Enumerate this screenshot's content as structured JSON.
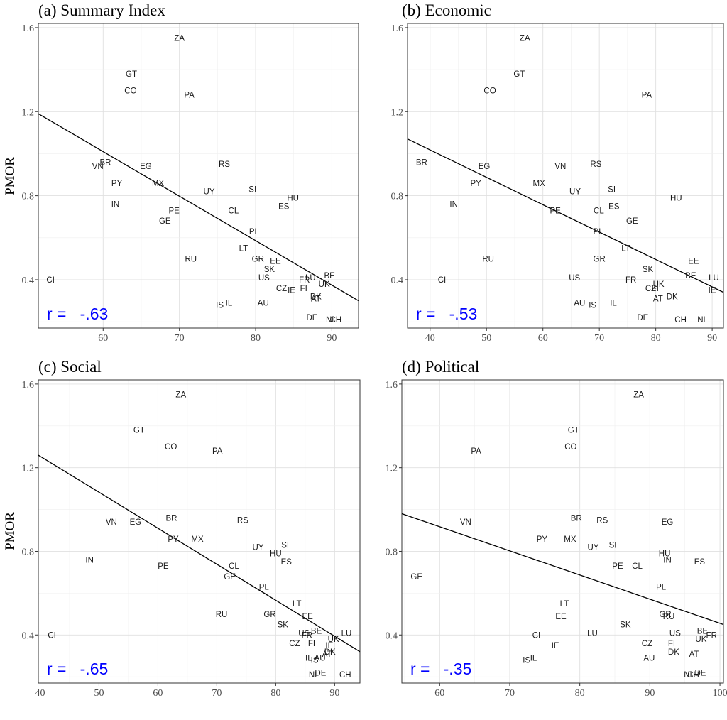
{
  "y_axis_label": "PMOR",
  "chart_data": [
    {
      "type": "scatter",
      "title": "(a) Summary Index",
      "xlim": [
        51.5,
        93.5
      ],
      "ylim": [
        0.17,
        1.62
      ],
      "x_ticks": [
        "60",
        "70",
        "80",
        "90"
      ],
      "y_ticks": [
        "0.4",
        "0.8",
        "1.2",
        "1.6"
      ],
      "fit_line": {
        "x0": 51.5,
        "y0": 1.19,
        "x1": 93.5,
        "y1": 0.3
      },
      "r_label": "r =   -.63",
      "points": [
        {
          "label": "ZA",
          "x": 70.0,
          "y": 1.55
        },
        {
          "label": "GT",
          "x": 63.7,
          "y": 1.38
        },
        {
          "label": "CO",
          "x": 63.6,
          "y": 1.3
        },
        {
          "label": "PA",
          "x": 71.3,
          "y": 1.28
        },
        {
          "label": "BR",
          "x": 60.3,
          "y": 0.96
        },
        {
          "label": "VN",
          "x": 59.3,
          "y": 0.94
        },
        {
          "label": "EG",
          "x": 65.6,
          "y": 0.94
        },
        {
          "label": "RS",
          "x": 75.9,
          "y": 0.95
        },
        {
          "label": "PY",
          "x": 61.8,
          "y": 0.86
        },
        {
          "label": "MX",
          "x": 67.2,
          "y": 0.86
        },
        {
          "label": "UY",
          "x": 73.9,
          "y": 0.82
        },
        {
          "label": "SI",
          "x": 79.6,
          "y": 0.83
        },
        {
          "label": "HU",
          "x": 84.9,
          "y": 0.79
        },
        {
          "label": "IN",
          "x": 61.6,
          "y": 0.76
        },
        {
          "label": "ES",
          "x": 83.7,
          "y": 0.75
        },
        {
          "label": "PE",
          "x": 69.3,
          "y": 0.73
        },
        {
          "label": "CL",
          "x": 77.1,
          "y": 0.73
        },
        {
          "label": "GE",
          "x": 68.1,
          "y": 0.68
        },
        {
          "label": "PL",
          "x": 79.8,
          "y": 0.63
        },
        {
          "label": "LT",
          "x": 78.4,
          "y": 0.55
        },
        {
          "label": "GR",
          "x": 80.3,
          "y": 0.5
        },
        {
          "label": "EE",
          "x": 82.6,
          "y": 0.49
        },
        {
          "label": "RU",
          "x": 71.5,
          "y": 0.5
        },
        {
          "label": "SK",
          "x": 81.8,
          "y": 0.45
        },
        {
          "label": "US",
          "x": 81.1,
          "y": 0.41
        },
        {
          "label": "FR",
          "x": 86.4,
          "y": 0.4
        },
        {
          "label": "LU",
          "x": 87.2,
          "y": 0.41
        },
        {
          "label": "BE",
          "x": 89.7,
          "y": 0.42
        },
        {
          "label": "UK",
          "x": 89.0,
          "y": 0.38
        },
        {
          "label": "CI",
          "x": 53.1,
          "y": 0.4
        },
        {
          "label": "CZ",
          "x": 83.4,
          "y": 0.36
        },
        {
          "label": "IE",
          "x": 84.7,
          "y": 0.35
        },
        {
          "label": "FI",
          "x": 86.3,
          "y": 0.36
        },
        {
          "label": "DK",
          "x": 87.9,
          "y": 0.32
        },
        {
          "label": "AT",
          "x": 87.9,
          "y": 0.31
        },
        {
          "label": "IL",
          "x": 76.5,
          "y": 0.29
        },
        {
          "label": "IS",
          "x": 75.3,
          "y": 0.28
        },
        {
          "label": "AU",
          "x": 81.0,
          "y": 0.29
        },
        {
          "label": "DE",
          "x": 87.4,
          "y": 0.22
        },
        {
          "label": "NL",
          "x": 89.9,
          "y": 0.21
        },
        {
          "label": "CH",
          "x": 90.5,
          "y": 0.21
        }
      ]
    },
    {
      "type": "scatter",
      "title": "(b) Economic",
      "xlim": [
        36,
        92
      ],
      "ylim": [
        0.17,
        1.62
      ],
      "x_ticks": [
        "40",
        "50",
        "60",
        "70",
        "80",
        "90"
      ],
      "y_ticks": [
        "0.4",
        "0.8",
        "1.2",
        "1.6"
      ],
      "fit_line": {
        "x0": 36,
        "y0": 1.07,
        "x1": 92,
        "y1": 0.34
      },
      "r_label": "r =   -.53",
      "points": [
        {
          "label": "ZA",
          "x": 56.8,
          "y": 1.55
        },
        {
          "label": "GT",
          "x": 55.8,
          "y": 1.38
        },
        {
          "label": "CO",
          "x": 50.6,
          "y": 1.3
        },
        {
          "label": "PA",
          "x": 78.4,
          "y": 1.28
        },
        {
          "label": "BR",
          "x": 38.5,
          "y": 0.96
        },
        {
          "label": "EG",
          "x": 49.6,
          "y": 0.94
        },
        {
          "label": "VN",
          "x": 63.1,
          "y": 0.94
        },
        {
          "label": "RS",
          "x": 69.4,
          "y": 0.95
        },
        {
          "label": "PY",
          "x": 48.1,
          "y": 0.86
        },
        {
          "label": "MX",
          "x": 59.3,
          "y": 0.86
        },
        {
          "label": "UY",
          "x": 65.7,
          "y": 0.82
        },
        {
          "label": "SI",
          "x": 72.2,
          "y": 0.83
        },
        {
          "label": "HU",
          "x": 83.6,
          "y": 0.79
        },
        {
          "label": "IN",
          "x": 44.2,
          "y": 0.76
        },
        {
          "label": "ES",
          "x": 72.6,
          "y": 0.75
        },
        {
          "label": "PE",
          "x": 62.2,
          "y": 0.73
        },
        {
          "label": "CL",
          "x": 69.9,
          "y": 0.73
        },
        {
          "label": "GE",
          "x": 75.8,
          "y": 0.68
        },
        {
          "label": "PL",
          "x": 69.8,
          "y": 0.63
        },
        {
          "label": "LT",
          "x": 74.7,
          "y": 0.55
        },
        {
          "label": "GR",
          "x": 70.0,
          "y": 0.5
        },
        {
          "label": "EE",
          "x": 86.7,
          "y": 0.49
        },
        {
          "label": "RU",
          "x": 50.3,
          "y": 0.5
        },
        {
          "label": "SK",
          "x": 78.6,
          "y": 0.45
        },
        {
          "label": "US",
          "x": 65.6,
          "y": 0.41
        },
        {
          "label": "BE",
          "x": 86.2,
          "y": 0.42
        },
        {
          "label": "LU",
          "x": 90.3,
          "y": 0.41
        },
        {
          "label": "FR",
          "x": 75.6,
          "y": 0.4
        },
        {
          "label": "CI",
          "x": 42.1,
          "y": 0.4
        },
        {
          "label": "UK",
          "x": 80.5,
          "y": 0.38
        },
        {
          "label": "CZ",
          "x": 79.1,
          "y": 0.36
        },
        {
          "label": "FI",
          "x": 79.9,
          "y": 0.36
        },
        {
          "label": "IE",
          "x": 90.0,
          "y": 0.35
        },
        {
          "label": "DK",
          "x": 82.9,
          "y": 0.32
        },
        {
          "label": "AT",
          "x": 80.4,
          "y": 0.31
        },
        {
          "label": "AU",
          "x": 66.5,
          "y": 0.29
        },
        {
          "label": "IS",
          "x": 68.8,
          "y": 0.28
        },
        {
          "label": "IL",
          "x": 72.5,
          "y": 0.29
        },
        {
          "label": "DE",
          "x": 77.7,
          "y": 0.22
        },
        {
          "label": "CH",
          "x": 84.4,
          "y": 0.21
        },
        {
          "label": "NL",
          "x": 88.3,
          "y": 0.21
        }
      ]
    },
    {
      "type": "scatter",
      "title": "(c) Social",
      "xlim": [
        39.7,
        94.3
      ],
      "ylim": [
        0.17,
        1.62
      ],
      "x_ticks": [
        "40",
        "50",
        "60",
        "70",
        "80",
        "90"
      ],
      "y_ticks": [
        "0.4",
        "0.8",
        "1.2",
        "1.6"
      ],
      "fit_line": {
        "x0": 39.7,
        "y0": 1.26,
        "x1": 94.3,
        "y1": 0.32
      },
      "r_label": "r =   -.65",
      "points": [
        {
          "label": "ZA",
          "x": 63.9,
          "y": 1.55
        },
        {
          "label": "GT",
          "x": 56.8,
          "y": 1.38
        },
        {
          "label": "CO",
          "x": 62.2,
          "y": 1.3
        },
        {
          "label": "PA",
          "x": 70.1,
          "y": 1.28
        },
        {
          "label": "BR",
          "x": 62.3,
          "y": 0.96
        },
        {
          "label": "VN",
          "x": 52.1,
          "y": 0.94
        },
        {
          "label": "EG",
          "x": 56.2,
          "y": 0.94
        },
        {
          "label": "RS",
          "x": 74.4,
          "y": 0.95
        },
        {
          "label": "PY",
          "x": 62.6,
          "y": 0.86
        },
        {
          "label": "MX",
          "x": 66.7,
          "y": 0.86
        },
        {
          "label": "UY",
          "x": 77.0,
          "y": 0.82
        },
        {
          "label": "SI",
          "x": 81.6,
          "y": 0.83
        },
        {
          "label": "HU",
          "x": 80.0,
          "y": 0.79
        },
        {
          "label": "IN",
          "x": 48.4,
          "y": 0.76
        },
        {
          "label": "ES",
          "x": 81.8,
          "y": 0.75
        },
        {
          "label": "PE",
          "x": 60.9,
          "y": 0.73
        },
        {
          "label": "CL",
          "x": 72.9,
          "y": 0.73
        },
        {
          "label": "GE",
          "x": 72.2,
          "y": 0.68
        },
        {
          "label": "PL",
          "x": 78.0,
          "y": 0.63
        },
        {
          "label": "LT",
          "x": 83.6,
          "y": 0.55
        },
        {
          "label": "EE",
          "x": 85.4,
          "y": 0.49
        },
        {
          "label": "GR",
          "x": 79.0,
          "y": 0.5
        },
        {
          "label": "RU",
          "x": 70.8,
          "y": 0.5
        },
        {
          "label": "SK",
          "x": 81.2,
          "y": 0.45
        },
        {
          "label": "BE",
          "x": 86.9,
          "y": 0.42
        },
        {
          "label": "US",
          "x": 84.8,
          "y": 0.41
        },
        {
          "label": "FR",
          "x": 85.3,
          "y": 0.4
        },
        {
          "label": "LU",
          "x": 92.0,
          "y": 0.41
        },
        {
          "label": "UK",
          "x": 89.8,
          "y": 0.38
        },
        {
          "label": "CI",
          "x": 42.0,
          "y": 0.4
        },
        {
          "label": "CZ",
          "x": 83.2,
          "y": 0.36
        },
        {
          "label": "FI",
          "x": 86.1,
          "y": 0.36
        },
        {
          "label": "IE",
          "x": 89.1,
          "y": 0.35
        },
        {
          "label": "DK",
          "x": 89.2,
          "y": 0.32
        },
        {
          "label": "AT",
          "x": 88.7,
          "y": 0.31
        },
        {
          "label": "AU",
          "x": 87.5,
          "y": 0.29
        },
        {
          "label": "IL",
          "x": 85.6,
          "y": 0.29
        },
        {
          "label": "IS",
          "x": 86.6,
          "y": 0.28
        },
        {
          "label": "DE",
          "x": 87.6,
          "y": 0.22
        },
        {
          "label": "NL",
          "x": 86.5,
          "y": 0.21
        },
        {
          "label": "CH",
          "x": 91.8,
          "y": 0.21
        }
      ]
    },
    {
      "type": "scatter",
      "title": "(d) Political",
      "xlim": [
        54.6,
        100.5
      ],
      "ylim": [
        0.17,
        1.62
      ],
      "x_ticks": [
        "60",
        "70",
        "80",
        "90",
        "100"
      ],
      "y_ticks": [
        "0.4",
        "0.8",
        "1.2",
        "1.6"
      ],
      "fit_line": {
        "x0": 54.6,
        "y0": 0.98,
        "x1": 100.5,
        "y1": 0.45
      },
      "r_label": "r =   -.35",
      "points": [
        {
          "label": "ZA",
          "x": 88.4,
          "y": 1.55
        },
        {
          "label": "GT",
          "x": 79.1,
          "y": 1.38
        },
        {
          "label": "CO",
          "x": 78.7,
          "y": 1.3
        },
        {
          "label": "PA",
          "x": 65.2,
          "y": 1.28
        },
        {
          "label": "VN",
          "x": 63.7,
          "y": 0.94
        },
        {
          "label": "BR",
          "x": 79.5,
          "y": 0.96
        },
        {
          "label": "RS",
          "x": 83.2,
          "y": 0.95
        },
        {
          "label": "EG",
          "x": 92.5,
          "y": 0.94
        },
        {
          "label": "PY",
          "x": 74.6,
          "y": 0.86
        },
        {
          "label": "MX",
          "x": 78.6,
          "y": 0.86
        },
        {
          "label": "UY",
          "x": 81.9,
          "y": 0.82
        },
        {
          "label": "SI",
          "x": 84.7,
          "y": 0.83
        },
        {
          "label": "HU",
          "x": 92.1,
          "y": 0.79
        },
        {
          "label": "IN",
          "x": 92.5,
          "y": 0.76
        },
        {
          "label": "ES",
          "x": 97.1,
          "y": 0.75
        },
        {
          "label": "GE",
          "x": 56.7,
          "y": 0.68
        },
        {
          "label": "PE",
          "x": 85.4,
          "y": 0.73
        },
        {
          "label": "CL",
          "x": 88.2,
          "y": 0.73
        },
        {
          "label": "PL",
          "x": 91.6,
          "y": 0.63
        },
        {
          "label": "LT",
          "x": 77.8,
          "y": 0.55
        },
        {
          "label": "EE",
          "x": 77.3,
          "y": 0.49
        },
        {
          "label": "GR",
          "x": 92.2,
          "y": 0.5
        },
        {
          "label": "RU",
          "x": 92.7,
          "y": 0.49
        },
        {
          "label": "SK",
          "x": 86.5,
          "y": 0.45
        },
        {
          "label": "LU",
          "x": 81.8,
          "y": 0.41
        },
        {
          "label": "US",
          "x": 93.6,
          "y": 0.41
        },
        {
          "label": "BE",
          "x": 97.5,
          "y": 0.42
        },
        {
          "label": "FR",
          "x": 98.8,
          "y": 0.4
        },
        {
          "label": "CI",
          "x": 73.8,
          "y": 0.4
        },
        {
          "label": "UK",
          "x": 97.3,
          "y": 0.38
        },
        {
          "label": "IE",
          "x": 76.5,
          "y": 0.35
        },
        {
          "label": "CZ",
          "x": 89.6,
          "y": 0.36
        },
        {
          "label": "FI",
          "x": 93.1,
          "y": 0.36
        },
        {
          "label": "DK",
          "x": 93.4,
          "y": 0.32
        },
        {
          "label": "AT",
          "x": 96.3,
          "y": 0.31
        },
        {
          "label": "AU",
          "x": 89.9,
          "y": 0.29
        },
        {
          "label": "IS",
          "x": 72.4,
          "y": 0.28
        },
        {
          "label": "IL",
          "x": 73.4,
          "y": 0.29
        },
        {
          "label": "NL",
          "x": 95.6,
          "y": 0.21
        },
        {
          "label": "CH",
          "x": 96.2,
          "y": 0.21
        },
        {
          "label": "DE",
          "x": 97.2,
          "y": 0.22
        }
      ]
    }
  ]
}
